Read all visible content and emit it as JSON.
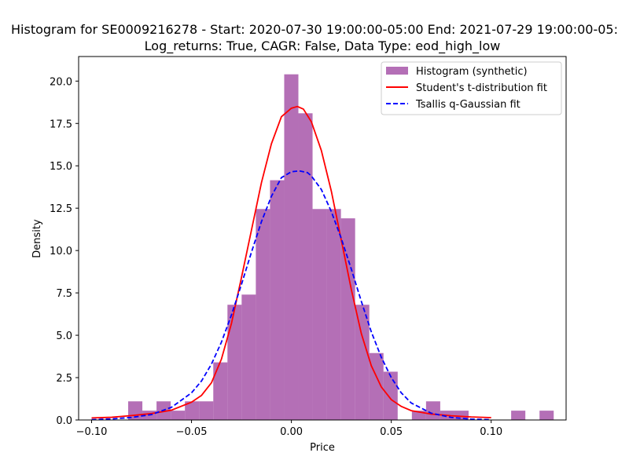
{
  "chart_data": {
    "type": "bar",
    "title_line1": "Histogram for SE0009216278 - Start: 2020-07-30 19:00:00-05:00 End: 2021-07-29 19:00:00-05:",
    "title_line2": "Log_returns: True, CAGR: False, Data Type: eod_high_low",
    "xlabel": "Price",
    "ylabel": "Density",
    "xlim": [
      -0.1065,
      0.1375
    ],
    "ylim": [
      0,
      21.45
    ],
    "x_ticks": [
      -0.1,
      -0.05,
      0.0,
      0.05,
      0.1
    ],
    "x_tick_labels": [
      "−0.10",
      "−0.05",
      "0.00",
      "0.05",
      "0.10"
    ],
    "y_ticks": [
      0.0,
      2.5,
      5.0,
      7.5,
      10.0,
      12.5,
      15.0,
      17.5,
      20.0
    ],
    "y_tick_labels": [
      "0.0",
      "2.5",
      "5.0",
      "7.5",
      "10.0",
      "12.5",
      "15.0",
      "17.5",
      "20.0"
    ],
    "grid": false,
    "legend_position": "top-right",
    "histogram": {
      "name": "Histogram (synthetic)",
      "color": "#9b3f9e",
      "opacity": 0.75,
      "bins": [
        {
          "x0": -0.0817,
          "x1": -0.0746,
          "density": 1.1
        },
        {
          "x0": -0.0746,
          "x1": -0.0675,
          "density": 0.55
        },
        {
          "x0": -0.0675,
          "x1": -0.0604,
          "density": 1.1
        },
        {
          "x0": -0.0604,
          "x1": -0.0533,
          "density": 0.55
        },
        {
          "x0": -0.0533,
          "x1": -0.0462,
          "density": 1.1
        },
        {
          "x0": -0.0462,
          "x1": -0.0391,
          "density": 1.1
        },
        {
          "x0": -0.0391,
          "x1": -0.032,
          "density": 3.4
        },
        {
          "x0": -0.032,
          "x1": -0.0249,
          "density": 6.8
        },
        {
          "x0": -0.0249,
          "x1": -0.0178,
          "density": 7.4
        },
        {
          "x0": -0.0178,
          "x1": -0.0107,
          "density": 12.45
        },
        {
          "x0": -0.0107,
          "x1": -0.0036,
          "density": 14.15
        },
        {
          "x0": -0.0036,
          "x1": 0.0035,
          "density": 20.4
        },
        {
          "x0": 0.0035,
          "x1": 0.0106,
          "density": 18.1
        },
        {
          "x0": 0.0106,
          "x1": 0.0177,
          "density": 12.45
        },
        {
          "x0": 0.0177,
          "x1": 0.0248,
          "density": 12.45
        },
        {
          "x0": 0.0248,
          "x1": 0.0319,
          "density": 11.9
        },
        {
          "x0": 0.0319,
          "x1": 0.039,
          "density": 6.8
        },
        {
          "x0": 0.039,
          "x1": 0.0461,
          "density": 3.95
        },
        {
          "x0": 0.0461,
          "x1": 0.0532,
          "density": 2.85
        },
        {
          "x0": 0.0603,
          "x1": 0.0674,
          "density": 0.55
        },
        {
          "x0": 0.0674,
          "x1": 0.0745,
          "density": 1.1
        },
        {
          "x0": 0.0745,
          "x1": 0.0816,
          "density": 0.55
        },
        {
          "x0": 0.0816,
          "x1": 0.0887,
          "density": 0.55
        },
        {
          "x0": 0.11,
          "x1": 0.1171,
          "density": 0.55
        },
        {
          "x0": 0.1242,
          "x1": 0.1313,
          "density": 0.55
        }
      ]
    },
    "curves": [
      {
        "name": "Student's t-distribution fit",
        "color": "#ff0000",
        "dash": "solid",
        "x": [
          -0.1,
          -0.09,
          -0.08,
          -0.07,
          -0.06,
          -0.05,
          -0.045,
          -0.04,
          -0.035,
          -0.03,
          -0.025,
          -0.02,
          -0.015,
          -0.01,
          -0.005,
          0.0,
          0.003,
          0.006,
          0.01,
          0.015,
          0.02,
          0.025,
          0.03,
          0.035,
          0.04,
          0.045,
          0.05,
          0.055,
          0.06,
          0.07,
          0.08,
          0.09,
          0.1
        ],
        "y": [
          0.12,
          0.16,
          0.26,
          0.38,
          0.58,
          1.05,
          1.45,
          2.2,
          3.6,
          5.7,
          8.4,
          11.2,
          14.0,
          16.3,
          17.9,
          18.4,
          18.5,
          18.35,
          17.6,
          15.9,
          13.5,
          10.6,
          7.7,
          5.1,
          3.2,
          1.95,
          1.2,
          0.8,
          0.55,
          0.35,
          0.25,
          0.18,
          0.14
        ]
      },
      {
        "name": "Tsallis q-Gaussian fit",
        "color": "#0000ff",
        "dash": "dashed",
        "x": [
          -0.1,
          -0.09,
          -0.08,
          -0.07,
          -0.06,
          -0.05,
          -0.045,
          -0.04,
          -0.035,
          -0.03,
          -0.025,
          -0.02,
          -0.015,
          -0.01,
          -0.005,
          0.0,
          0.004,
          0.008,
          0.01,
          0.015,
          0.02,
          0.025,
          0.03,
          0.035,
          0.04,
          0.045,
          0.05,
          0.055,
          0.06,
          0.07,
          0.08,
          0.09,
          0.1
        ],
        "y": [
          0.02,
          0.06,
          0.15,
          0.32,
          0.75,
          1.6,
          2.3,
          3.3,
          4.6,
          6.2,
          8.0,
          9.9,
          11.7,
          13.2,
          14.3,
          14.65,
          14.7,
          14.6,
          14.4,
          13.6,
          12.3,
          10.7,
          8.9,
          7.0,
          5.2,
          3.7,
          2.5,
          1.6,
          1.0,
          0.4,
          0.15,
          0.05,
          0.02
        ]
      }
    ]
  }
}
